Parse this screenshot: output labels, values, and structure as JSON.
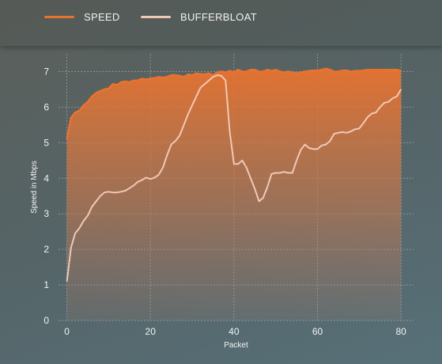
{
  "legend": {
    "speed_label": "SPEED",
    "bufferbloat_label": "BUFFERBLOAT"
  },
  "colors": {
    "speed": "#e8732f",
    "bufferbloat": "#f1c8b5"
  },
  "chart_data": {
    "type": "line",
    "xlabel": "Packet",
    "ylabel": "Speed in Mbps",
    "xlim": [
      -2,
      83
    ],
    "ylim": [
      0,
      7.5
    ],
    "xticks": [
      0,
      20,
      40,
      60,
      80
    ],
    "yticks": [
      0,
      1,
      2,
      3,
      4,
      5,
      6,
      7
    ],
    "grid": true,
    "legend_position": "top-left",
    "series": [
      {
        "name": "SPEED",
        "type": "area",
        "x": [
          0,
          1,
          2,
          3,
          4,
          5,
          6,
          7,
          8,
          9,
          10,
          11,
          12,
          13,
          14,
          15,
          16,
          17,
          18,
          19,
          20,
          21,
          22,
          23,
          24,
          25,
          26,
          27,
          28,
          29,
          30,
          31,
          32,
          33,
          34,
          35,
          36,
          37,
          38,
          39,
          40,
          41,
          42,
          43,
          44,
          45,
          46,
          47,
          48,
          49,
          50,
          51,
          52,
          53,
          54,
          55,
          56,
          57,
          58,
          59,
          60,
          61,
          62,
          63,
          64,
          65,
          66,
          67,
          68,
          69,
          70,
          71,
          72,
          73,
          74,
          75,
          76,
          77,
          78,
          79,
          80
        ],
        "values": [
          5.1,
          5.7,
          5.85,
          5.9,
          6.05,
          6.15,
          6.3,
          6.4,
          6.45,
          6.5,
          6.52,
          6.65,
          6.62,
          6.7,
          6.72,
          6.7,
          6.75,
          6.75,
          6.8,
          6.78,
          6.8,
          6.82,
          6.85,
          6.83,
          6.85,
          6.9,
          6.9,
          6.88,
          6.85,
          6.92,
          6.9,
          6.95,
          6.93,
          6.92,
          6.95,
          6.9,
          6.98,
          7.0,
          6.98,
          7.02,
          6.98,
          7.05,
          7.0,
          7.0,
          7.05,
          7.05,
          7.0,
          7.0,
          7.05,
          7.02,
          7.05,
          7.0,
          6.98,
          7.0,
          6.98,
          6.95,
          6.98,
          7.0,
          7.02,
          7.03,
          7.03,
          7.05,
          7.08,
          7.05,
          7.0,
          7.0,
          7.03,
          7.03,
          7.0,
          7.02,
          7.02,
          7.03,
          7.05,
          7.05,
          7.05,
          7.05,
          7.05,
          7.05,
          7.05,
          7.05,
          7.02
        ]
      },
      {
        "name": "BUFFERBLOAT",
        "type": "line",
        "x": [
          0,
          1,
          2,
          3,
          4,
          5,
          6,
          7,
          8,
          9,
          10,
          11,
          12,
          13,
          14,
          15,
          16,
          17,
          18,
          19,
          20,
          21,
          22,
          23,
          24,
          25,
          26,
          27,
          28,
          29,
          30,
          31,
          32,
          33,
          34,
          35,
          36,
          37,
          38,
          39,
          40,
          41,
          42,
          43,
          44,
          45,
          46,
          47,
          48,
          49,
          50,
          51,
          52,
          53,
          54,
          55,
          56,
          57,
          58,
          59,
          60,
          61,
          62,
          63,
          64,
          65,
          66,
          67,
          68,
          69,
          70,
          71,
          72,
          73,
          74,
          75,
          76,
          77,
          78,
          79,
          80
        ],
        "values": [
          1.1,
          2.05,
          2.45,
          2.6,
          2.8,
          2.95,
          3.2,
          3.35,
          3.5,
          3.6,
          3.62,
          3.6,
          3.6,
          3.62,
          3.65,
          3.72,
          3.8,
          3.9,
          3.95,
          4.02,
          3.98,
          4.02,
          4.1,
          4.3,
          4.65,
          4.95,
          5.05,
          5.2,
          5.5,
          5.8,
          6.05,
          6.3,
          6.55,
          6.65,
          6.75,
          6.85,
          6.9,
          6.88,
          6.75,
          5.3,
          4.4,
          4.4,
          4.5,
          4.3,
          4.0,
          3.7,
          3.35,
          3.45,
          3.75,
          4.12,
          4.15,
          4.15,
          4.18,
          4.15,
          4.15,
          4.5,
          4.8,
          4.95,
          4.85,
          4.82,
          4.82,
          4.92,
          4.95,
          5.05,
          5.25,
          5.28,
          5.3,
          5.28,
          5.32,
          5.38,
          5.4,
          5.55,
          5.72,
          5.82,
          5.85,
          6.0,
          6.12,
          6.15,
          6.25,
          6.3,
          6.5
        ]
      }
    ]
  }
}
